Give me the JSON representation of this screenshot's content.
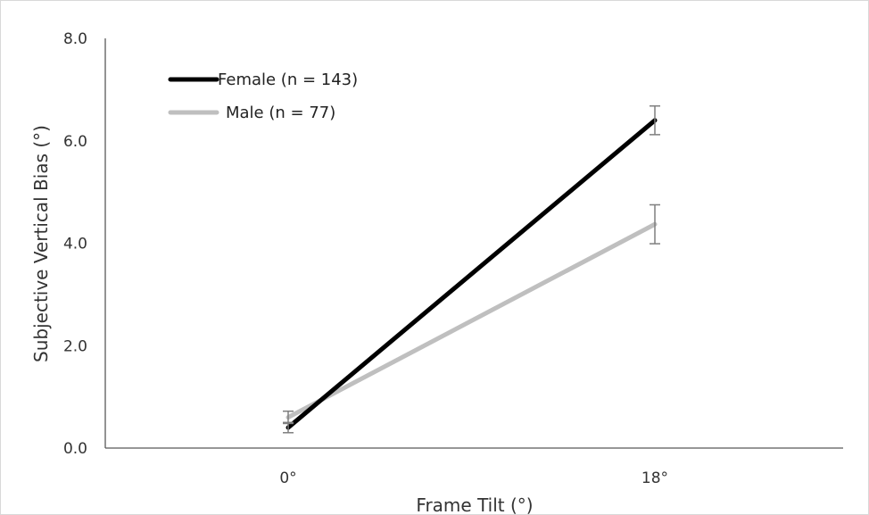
{
  "chart_data": {
    "type": "line",
    "title": "",
    "xlabel": "Frame Tilt (°)",
    "ylabel": "Subjective Vertical Bias (°)",
    "categories": [
      "0°",
      "18°"
    ],
    "y_ticks": [
      "0.0",
      "2.0",
      "4.0",
      "6.0",
      "8.0"
    ],
    "ylim": [
      0,
      8
    ],
    "grid": false,
    "legend_position": "top-left",
    "series": [
      {
        "name": "Female (n = 143)",
        "values": [
          0.4,
          6.4
        ],
        "error": [
          0.1,
          0.28
        ],
        "color": "#000000"
      },
      {
        "name": "Male (n = 77)",
        "values": [
          0.6,
          4.37
        ],
        "error": [
          0.12,
          0.38
        ],
        "color": "#bfbfbf"
      }
    ],
    "error_bar_color": "#7f7f7f"
  }
}
